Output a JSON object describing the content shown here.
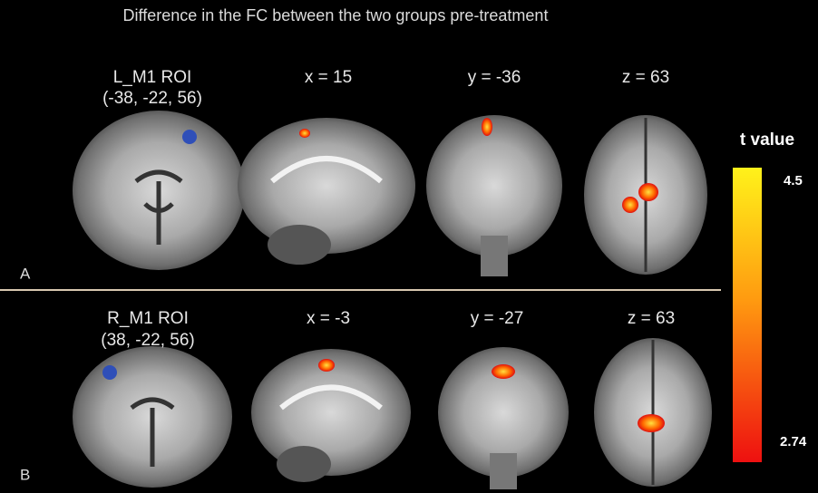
{
  "title": "Difference in the FC  between the two groups pre-treatment",
  "panels": [
    {
      "letter": "A",
      "roi": "L_M1 ROI",
      "coords": "(-38, -22, 56)",
      "slices": [
        "x = 15",
        "y = -36",
        "z = 63"
      ]
    },
    {
      "letter": "B",
      "roi": "R_M1 ROI",
      "coords": "(38, -22, 56)",
      "slices": [
        "x = -3",
        "y = -27",
        "z = 63"
      ]
    }
  ],
  "colorbar": {
    "title": "t value",
    "max": "4.5",
    "min": "2.74"
  }
}
